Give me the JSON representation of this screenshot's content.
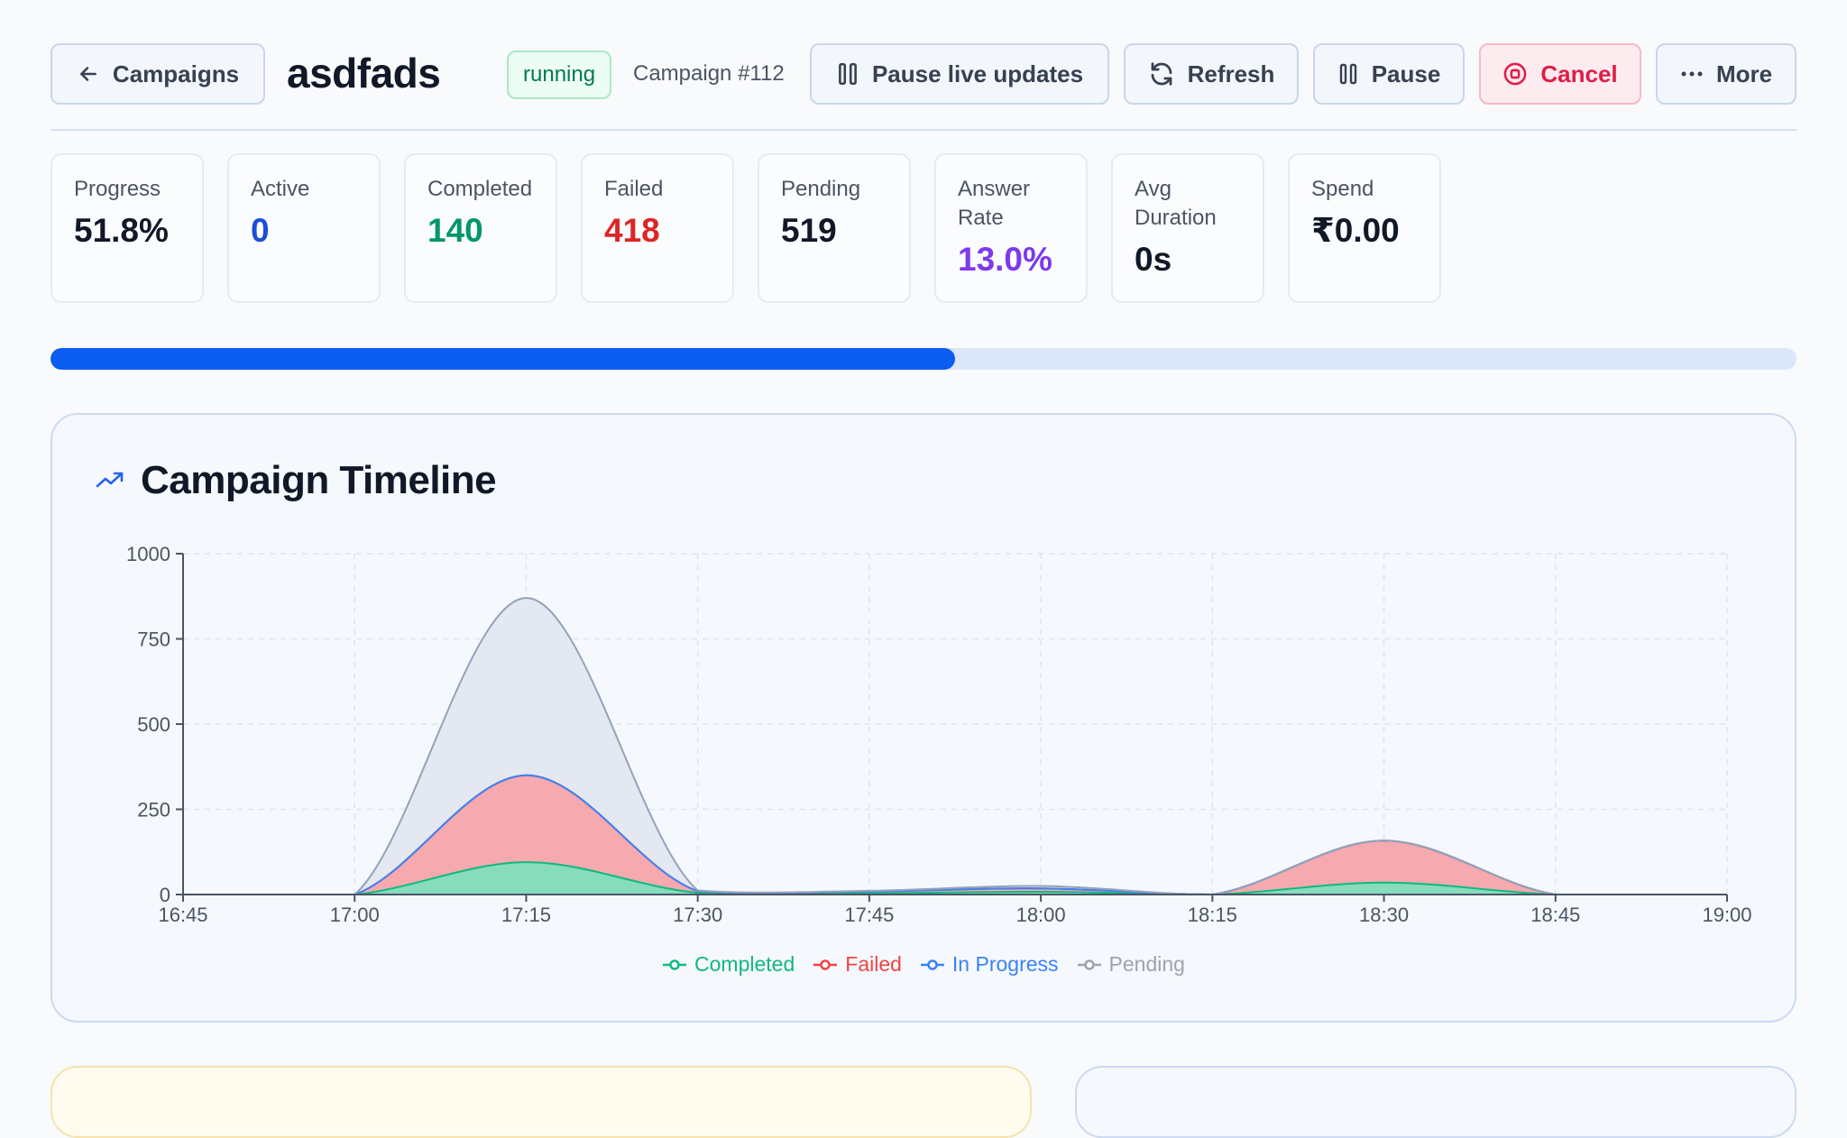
{
  "header": {
    "back_label": "Campaigns",
    "title": "asdfads",
    "status_badge": "running",
    "campaign_id": "Campaign #112",
    "pause_updates_label": "Pause live updates",
    "refresh_label": "Refresh",
    "pause_label": "Pause",
    "cancel_label": "Cancel",
    "more_label": "More"
  },
  "stats": [
    {
      "label": "Progress",
      "value": "51.8%",
      "color": "#111827"
    },
    {
      "label": "Active",
      "value": "0",
      "color": "#1d4ed8"
    },
    {
      "label": "Completed",
      "value": "140",
      "color": "#059669"
    },
    {
      "label": "Failed",
      "value": "418",
      "color": "#dc2626"
    },
    {
      "label": "Pending",
      "value": "519",
      "color": "#111827"
    },
    {
      "label": "Answer Rate",
      "value": "13.0%",
      "color": "#7c3aed"
    },
    {
      "label": "Avg Duration",
      "value": "0s",
      "color": "#111827"
    },
    {
      "label": "Spend",
      "value": "₹0.00",
      "color": "#111827"
    }
  ],
  "progress": {
    "fraction": 0.518
  },
  "timeline": {
    "title": "Campaign Timeline"
  },
  "chart_data": {
    "type": "area",
    "stacked": true,
    "x_ticks": [
      "16:45",
      "17:00",
      "17:15",
      "17:30",
      "17:45",
      "18:00",
      "18:15",
      "18:30",
      "18:45",
      "19:00"
    ],
    "x": [
      "16:45",
      "17:00",
      "17:15",
      "17:30",
      "17:45",
      "18:00",
      "18:15",
      "18:30",
      "18:45",
      "19:00"
    ],
    "y_ticks": [
      0,
      250,
      500,
      750,
      1000
    ],
    "ylim": [
      0,
      1000
    ],
    "grid": true,
    "legend_position": "bottom",
    "series": [
      {
        "name": "Completed",
        "color": "#10b981",
        "fill": "#86dcbb",
        "values": [
          0,
          0,
          95,
          5,
          4,
          8,
          0,
          35,
          0,
          0
        ]
      },
      {
        "name": "Failed",
        "color": "#ef4444",
        "fill": "#f6a9ae",
        "values": [
          0,
          0,
          255,
          5,
          5,
          10,
          0,
          123,
          0,
          0
        ]
      },
      {
        "name": "In Progress",
        "color": "#3b82f6",
        "fill": "#f6a9ae",
        "values": [
          0,
          0,
          0,
          0,
          0,
          0,
          0,
          0,
          0,
          0
        ]
      },
      {
        "name": "Pending",
        "color": "#94a3b8",
        "fill": "#e4e8f1",
        "values": [
          0,
          0,
          520,
          2,
          2,
          7,
          0,
          0,
          0,
          0
        ]
      }
    ],
    "legend_colors": {
      "Completed": "#10b981",
      "Failed": "#ef4444",
      "In Progress": "#3b82f6",
      "Pending": "#9ca3af"
    }
  }
}
